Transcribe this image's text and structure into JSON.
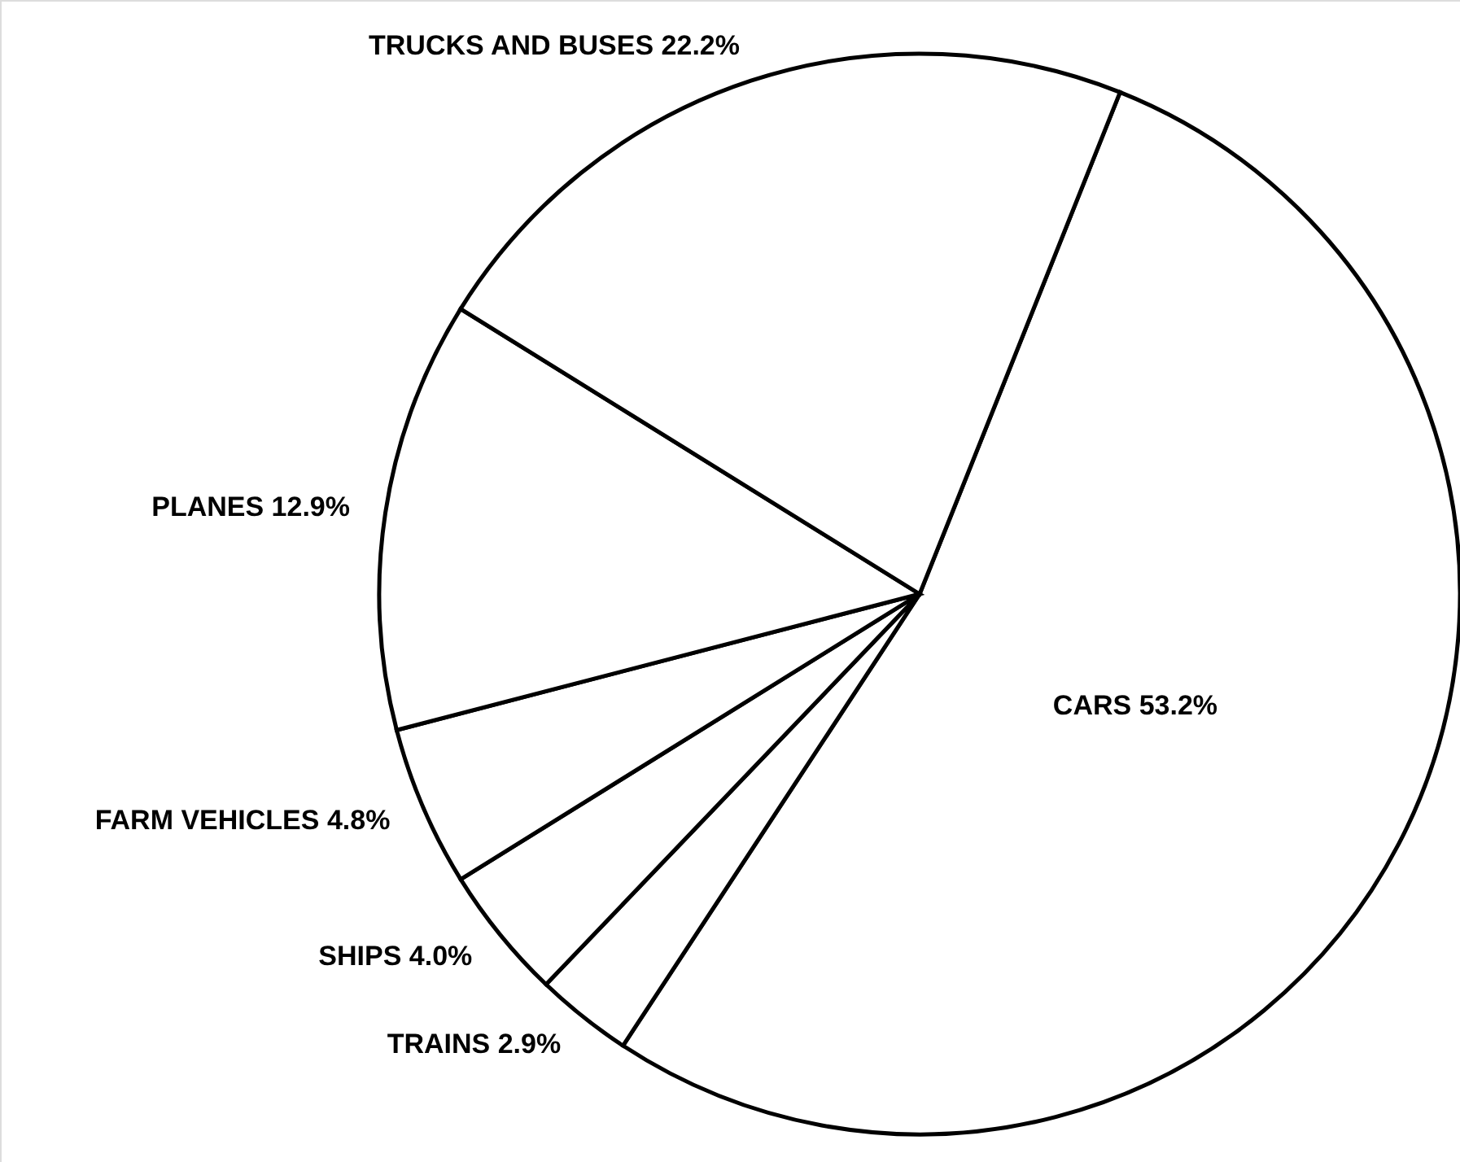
{
  "chart_data": {
    "type": "pie",
    "categories": [
      "CARS",
      "TRAINS",
      "SHIPS",
      "FARM VEHICLES",
      "PLANES",
      "TRUCKS AND BUSES"
    ],
    "values": [
      53.2,
      2.9,
      4.0,
      4.8,
      12.9,
      22.2
    ],
    "value_labels": [
      "53.2%",
      "2.9%",
      "4.0%",
      "4.8%",
      "12.9%",
      "22.2%"
    ],
    "colors": [
      "#ffffff",
      "#ffffff",
      "#ffffff",
      "#ffffff",
      "#ffffff",
      "#ffffff"
    ]
  }
}
